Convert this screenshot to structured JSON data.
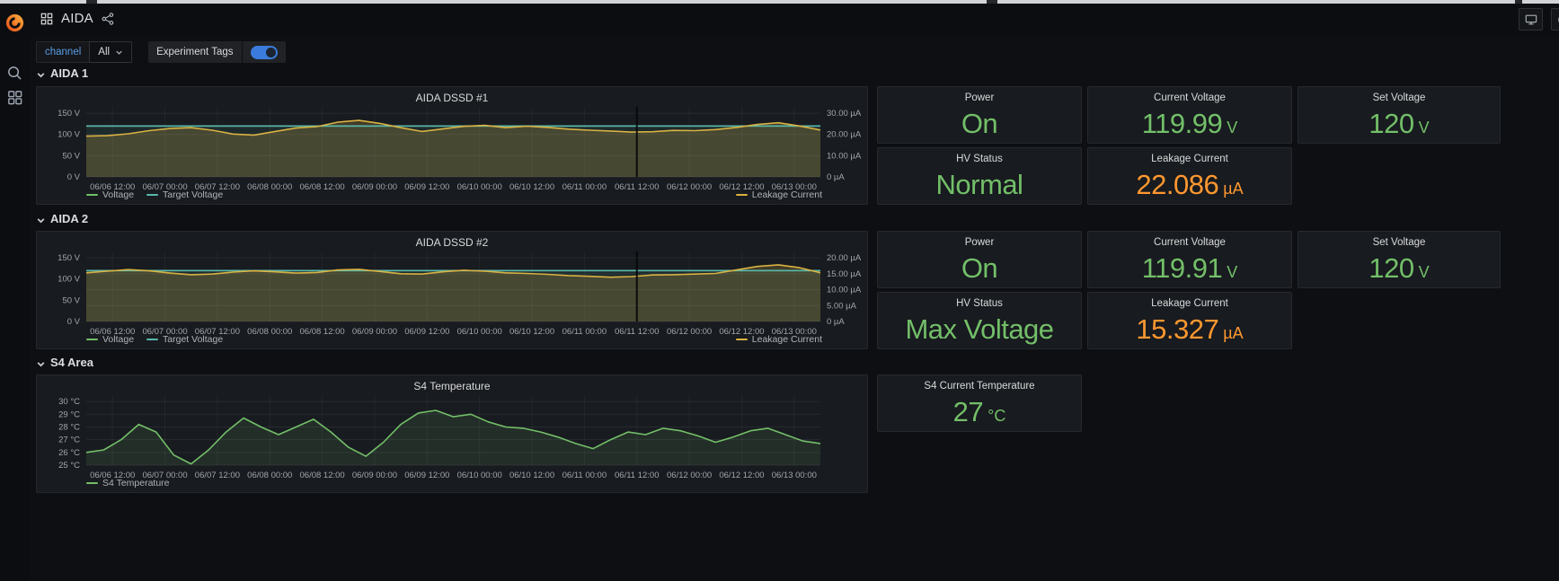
{
  "topbar": {
    "title": "AIDA"
  },
  "toolbar": {
    "variable_label": "channel",
    "variable_value": "All",
    "tags_label": "Experiment Tags",
    "tags_toggle": "on"
  },
  "colors": {
    "green": "#73BF69",
    "orange": "#FF9830"
  },
  "sections": [
    {
      "label": "AIDA 1",
      "stats": [
        {
          "title": "Power",
          "value": "On",
          "unit": "",
          "color": "green"
        },
        {
          "title": "Current Voltage",
          "value": "119.99",
          "unit": "V",
          "color": "green"
        },
        {
          "title": "Set Voltage",
          "value": "120",
          "unit": "V",
          "color": "green"
        },
        {
          "title": "HV Status",
          "value": "Normal",
          "unit": "",
          "color": "green"
        },
        {
          "title": "Leakage Current",
          "value": "22.086",
          "unit": "µA",
          "color": "orange"
        }
      ]
    },
    {
      "label": "AIDA 2",
      "stats": [
        {
          "title": "Power",
          "value": "On",
          "unit": "",
          "color": "green"
        },
        {
          "title": "Current Voltage",
          "value": "119.91",
          "unit": "V",
          "color": "green"
        },
        {
          "title": "Set Voltage",
          "value": "120",
          "unit": "V",
          "color": "green"
        },
        {
          "title": "HV Status",
          "value": "Max Voltage",
          "unit": "",
          "color": "green"
        },
        {
          "title": "Leakage Current",
          "value": "15.327",
          "unit": "µA",
          "color": "orange"
        }
      ]
    },
    {
      "label": "S4 Area",
      "stats": [
        {
          "title": "S4 Current Temperature",
          "value": "27",
          "unit": "°C",
          "color": "green"
        }
      ]
    }
  ],
  "chart_data": [
    {
      "type": "line",
      "title": "AIDA DSSD #1",
      "x_ticks": [
        "06/06 12:00",
        "06/07 00:00",
        "06/07 12:00",
        "06/08 00:00",
        "06/08 12:00",
        "06/09 00:00",
        "06/09 12:00",
        "06/10 00:00",
        "06/10 12:00",
        "06/11 00:00",
        "06/11 12:00",
        "06/12 00:00",
        "06/12 12:00",
        "06/13 00:00"
      ],
      "first_tick_hour": 6,
      "tick_step_hours": 12,
      "x_range_hours": 168,
      "left_axis": {
        "min": 0,
        "max": 165,
        "ticks": [
          {
            "v": 0,
            "label": "0 V"
          },
          {
            "v": 50,
            "label": "50 V"
          },
          {
            "v": 100,
            "label": "100 V"
          },
          {
            "v": 150,
            "label": "150 V"
          }
        ]
      },
      "right_axis": {
        "min": 0,
        "max": 33,
        "ticks": [
          {
            "v": 0,
            "label": "0 µA"
          },
          {
            "v": 10,
            "label": "10.00 µA"
          },
          {
            "v": 20,
            "label": "20.00 µA"
          },
          {
            "v": 30,
            "label": "30.00 µA"
          }
        ]
      },
      "grid_axis": "left",
      "annotation_fraction": 0.75,
      "series": [
        {
          "name": "Voltage",
          "axis": "left",
          "color": "#73BF69",
          "flat": 119.99
        },
        {
          "name": "Target Voltage",
          "axis": "left",
          "color": "#58B7AC",
          "flat": 120,
          "fill_opacity": 0.1
        },
        {
          "name": "Leakage Current",
          "axis": "right",
          "color": "#D9B243",
          "fill_opacity": 0.22,
          "legend": "right",
          "values": [
            19.2,
            19.4,
            20.3,
            21.8,
            22.8,
            23.2,
            22.0,
            20.2,
            19.7,
            21.4,
            23.0,
            23.7,
            25.8,
            26.6,
            25.2,
            23.2,
            21.4,
            22.6,
            23.8,
            24.3,
            23.2,
            23.9,
            23.3,
            22.5,
            22.0,
            21.6,
            21.1,
            21.3,
            21.9,
            21.8,
            22.3,
            23.3,
            24.7,
            25.5,
            24.0,
            22.086
          ]
        }
      ]
    },
    {
      "type": "line",
      "title": "AIDA DSSD #2",
      "x_ticks": [
        "06/06 12:00",
        "06/07 00:00",
        "06/07 12:00",
        "06/08 00:00",
        "06/08 12:00",
        "06/09 00:00",
        "06/09 12:00",
        "06/10 00:00",
        "06/10 12:00",
        "06/11 00:00",
        "06/11 12:00",
        "06/12 00:00",
        "06/12 12:00",
        "06/13 00:00"
      ],
      "first_tick_hour": 6,
      "tick_step_hours": 12,
      "x_range_hours": 168,
      "left_axis": {
        "min": 0,
        "max": 165,
        "ticks": [
          {
            "v": 0,
            "label": "0 V"
          },
          {
            "v": 50,
            "label": "50 V"
          },
          {
            "v": 100,
            "label": "100 V"
          },
          {
            "v": 150,
            "label": "150 V"
          }
        ]
      },
      "right_axis": {
        "min": 0,
        "max": 22,
        "ticks": [
          {
            "v": 0,
            "label": "0 µA"
          },
          {
            "v": 5,
            "label": "5.00 µA"
          },
          {
            "v": 10,
            "label": "10.00 µA"
          },
          {
            "v": 15,
            "label": "15.00 µA"
          },
          {
            "v": 20,
            "label": "20.00 µA"
          }
        ]
      },
      "grid_axis": "right",
      "annotation_fraction": 0.75,
      "series": [
        {
          "name": "Voltage",
          "axis": "left",
          "color": "#73BF69",
          "flat": 119.91
        },
        {
          "name": "Target Voltage",
          "axis": "left",
          "color": "#58B7AC",
          "flat": 120,
          "fill_opacity": 0.1
        },
        {
          "name": "Leakage Current",
          "axis": "right",
          "color": "#D9B243",
          "fill_opacity": 0.22,
          "legend": "right",
          "values": [
            15.3,
            15.8,
            16.3,
            15.9,
            15.2,
            14.7,
            14.9,
            15.5,
            15.9,
            15.6,
            15.2,
            15.4,
            16.2,
            16.4,
            15.7,
            15.0,
            14.9,
            15.6,
            16.1,
            15.8,
            15.3,
            15.1,
            14.8,
            14.4,
            14.2,
            13.9,
            14.1,
            14.6,
            14.7,
            14.9,
            15.1,
            16.2,
            17.3,
            17.8,
            16.9,
            15.327
          ]
        }
      ]
    },
    {
      "type": "line",
      "title": "S4 Temperature",
      "x_ticks": [
        "06/06 12:00",
        "06/07 00:00",
        "06/07 12:00",
        "06/08 00:00",
        "06/08 12:00",
        "06/09 00:00",
        "06/09 12:00",
        "06/10 00:00",
        "06/10 12:00",
        "06/11 00:00",
        "06/11 12:00",
        "06/12 00:00",
        "06/12 12:00",
        "06/13 00:00"
      ],
      "first_tick_hour": 6,
      "tick_step_hours": 12,
      "x_range_hours": 168,
      "left_axis": {
        "min": 25,
        "max": 30.5,
        "ticks": [
          {
            "v": 25,
            "label": "25 °C"
          },
          {
            "v": 26,
            "label": "26 °C"
          },
          {
            "v": 27,
            "label": "27 °C"
          },
          {
            "v": 28,
            "label": "28 °C"
          },
          {
            "v": 29,
            "label": "29 °C"
          },
          {
            "v": 30,
            "label": "30 °C"
          }
        ]
      },
      "right_axis": null,
      "grid_axis": "left",
      "annotation_fraction": null,
      "series": [
        {
          "name": "S4 Temperature",
          "axis": "left",
          "color": "#73BF69",
          "fill_opacity": 0.12,
          "values": [
            26.0,
            26.2,
            27.0,
            28.2,
            27.6,
            25.8,
            25.1,
            26.2,
            27.6,
            28.7,
            28.0,
            27.4,
            28.0,
            28.6,
            27.6,
            26.4,
            25.7,
            26.8,
            28.2,
            29.1,
            29.3,
            28.8,
            29.0,
            28.4,
            28.0,
            27.9,
            27.6,
            27.2,
            26.7,
            26.3,
            27.0,
            27.6,
            27.4,
            27.9,
            27.7,
            27.3,
            26.8,
            27.2,
            27.7,
            27.9,
            27.4,
            26.9,
            26.7
          ]
        }
      ]
    }
  ]
}
